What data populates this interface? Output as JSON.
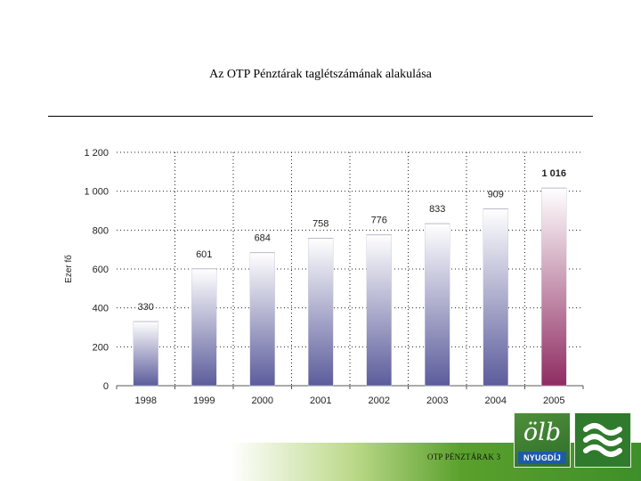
{
  "slide": {
    "title": "Az OTP Pénztárak taglétszámának alakulása",
    "footer": "OTP PÉNZTÁRAK 3"
  },
  "logos": {
    "nyugdij_mark": "ölb",
    "nyugdij_label": "NYUGDÍJ"
  },
  "colors": {
    "bar_top": "#ffffff",
    "bar_bottom": "#5c5c9c",
    "highlight_bottom": "#8f2c62",
    "band": "#3e8f2a"
  },
  "chart_data": {
    "type": "bar",
    "categories": [
      "1998",
      "1999",
      "2000",
      "2001",
      "2002",
      "2003",
      "2004",
      "2005"
    ],
    "values": [
      330,
      601,
      684,
      758,
      776,
      833,
      909,
      1016
    ],
    "value_labels": [
      "330",
      "601",
      "684",
      "758",
      "776",
      "833",
      "909",
      "1 016"
    ],
    "highlight_index": 7,
    "ylabel": "Ezer fő",
    "ylim": [
      0,
      1200
    ],
    "yticks": [
      0,
      200,
      400,
      600,
      800,
      1000,
      1200
    ],
    "ytick_labels": [
      "0",
      "200",
      "400",
      "600",
      "800",
      "1 000",
      "1 200"
    ],
    "grid": "dotted-horizontal"
  }
}
